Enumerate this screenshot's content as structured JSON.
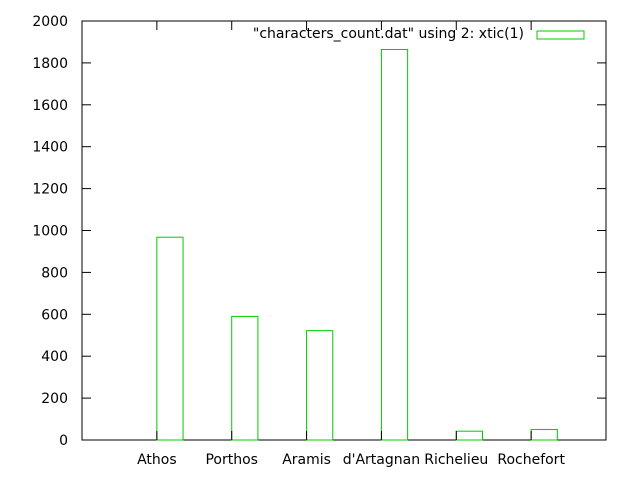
{
  "chart_data": {
    "type": "bar",
    "categories": [
      "Athos",
      "Porthos",
      "Aramis",
      "d'Artagnan",
      "Richelieu",
      "Rochefort"
    ],
    "series": [
      {
        "name": "\"characters_count.dat\" using 2: xtic(1)",
        "values": [
          968,
          590,
          522,
          1864,
          42,
          50
        ],
        "color": "#00cc00"
      }
    ],
    "ylim": [
      0,
      2000
    ],
    "yticks": [
      "0",
      "200",
      "400",
      "600",
      "800",
      "1000",
      "1200",
      "1400",
      "1600",
      "1800",
      "2000"
    ],
    "grid": false,
    "legend_position": "top-right",
    "axis_color": "#000000"
  }
}
